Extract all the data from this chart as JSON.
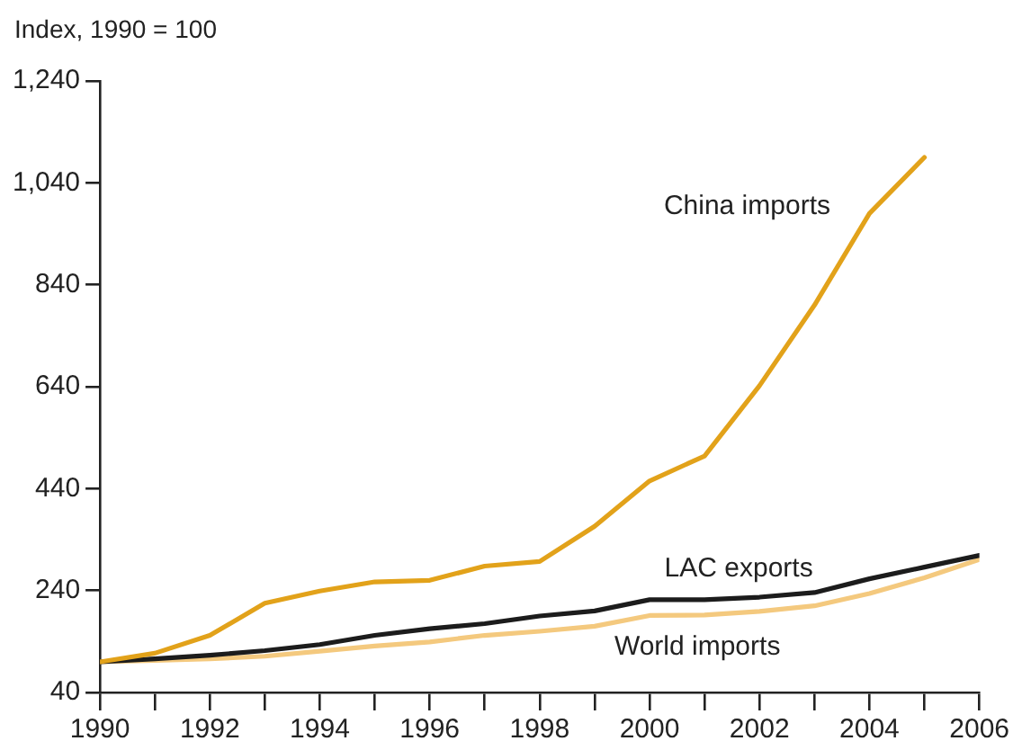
{
  "chart_data": {
    "type": "line",
    "ylabel": "Index, 1990 = 100",
    "x": [
      1990,
      1991,
      1992,
      1993,
      1994,
      1995,
      1996,
      1997,
      1998,
      1999,
      2000,
      2001,
      2002,
      2003,
      2004,
      2005,
      2006
    ],
    "series": [
      {
        "name": "China imports",
        "color": "#e2a21a",
        "values": [
          100,
          117,
          152,
          215,
          239,
          257,
          260,
          288,
          297,
          366,
          455,
          504,
          642,
          800,
          980,
          1090,
          null
        ]
      },
      {
        "name": "LAC exports",
        "color": "#1c1c1c",
        "values": [
          100,
          106,
          113,
          122,
          134,
          152,
          165,
          175,
          190,
          200,
          222,
          222,
          227,
          236,
          263,
          286,
          309
        ]
      },
      {
        "name": "World imports",
        "color": "#f4c97e",
        "values": [
          100,
          103,
          106,
          111,
          121,
          131,
          139,
          152,
          160,
          170,
          191,
          192,
          199,
          210,
          234,
          265,
          301
        ]
      }
    ],
    "xlim": [
      1990,
      2006
    ],
    "xticks": [
      1990,
      {
        "value": 1991,
        "label": null
      },
      1992,
      {
        "value": 1993,
        "label": null
      },
      1994,
      {
        "value": 1995,
        "label": null
      },
      1996,
      {
        "value": 1997,
        "label": null
      },
      1998,
      {
        "value": 1999,
        "label": null
      },
      2000,
      {
        "value": 2001,
        "label": null
      },
      2002,
      {
        "value": 2003,
        "label": null
      },
      2004,
      {
        "value": 2005,
        "label": null
      },
      2006
    ],
    "ylim": [
      40,
      1240
    ],
    "yticks": [
      40,
      240,
      440,
      640,
      840,
      {
        "value": 1040,
        "label": "1,040"
      },
      {
        "value": 1240,
        "label": "1,240"
      }
    ],
    "grid": false,
    "legend": false,
    "marker": "none",
    "line_style": "solid"
  }
}
